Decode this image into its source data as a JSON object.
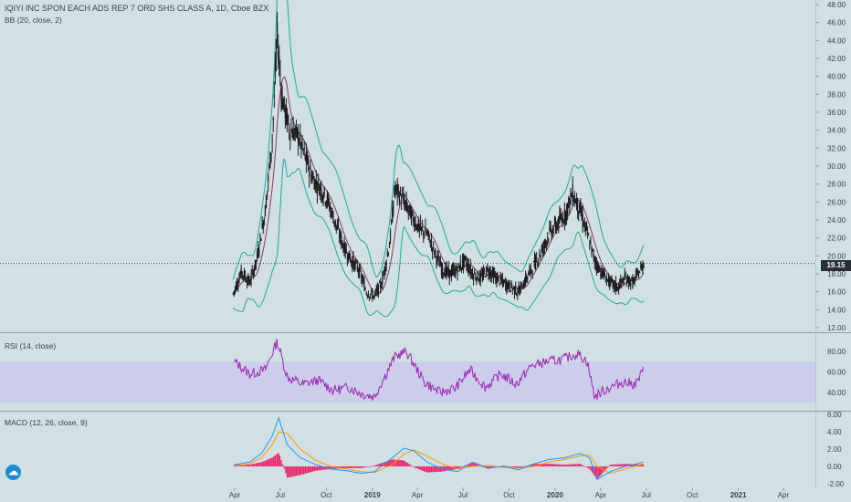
{
  "header": {
    "symbol_title": "IQIYI INC SPON EACH ADS REP 7 ORD SHS CLASS A, 1D, Cboe BZX",
    "bb_label": "BB (20, close, 2)",
    "rsi_label": "RSI (14, close)",
    "macd_label": "MACD (12, 26, close, 9)"
  },
  "last_price": "19.15",
  "colors": {
    "background": "#d1e0e3",
    "candle": "#1a1a1a",
    "bb_band": "#26a69a",
    "bb_basis": "#8b3a5c",
    "rsi_line": "#9c27b0",
    "rsi_band": "#c9c7ee",
    "macd_line": "#2196f3",
    "signal_line": "#ff9800",
    "histogram": "#e91e63",
    "axis_text": "#3a3f4a",
    "logo_icon": "tradingview-logo-icon"
  },
  "chart_data": [
    {
      "type": "line",
      "name": "price",
      "title": "IQIYI INC SPON EACH ADS REP 7 ORD SHS CLASS A, 1D, Cboe BZX",
      "x_ticks": [
        "Apr",
        "Jul",
        "Oct",
        "2019",
        "Apr",
        "Jul",
        "Oct",
        "2020",
        "Apr",
        "Jul",
        "Oct",
        "2021",
        "Apr"
      ],
      "x_range": [
        "2018-03-01",
        "2021-06-15"
      ],
      "y_ticks": [
        "12.00",
        "14.00",
        "16.00",
        "18.00",
        "20.00",
        "22.00",
        "24.00",
        "26.00",
        "28.00",
        "30.00",
        "32.00",
        "34.00",
        "36.00",
        "38.00",
        "40.00",
        "42.00",
        "44.00",
        "46.00",
        "48.00"
      ],
      "ylim": [
        12,
        48
      ],
      "last_value": 19.15,
      "x": [
        "2018-03-29",
        "2018-04-15",
        "2018-05-01",
        "2018-05-15",
        "2018-06-01",
        "2018-06-15",
        "2018-06-25",
        "2018-07-05",
        "2018-07-20",
        "2018-08-05",
        "2018-08-20",
        "2018-09-05",
        "2018-09-20",
        "2018-10-05",
        "2018-10-20",
        "2018-11-05",
        "2018-11-20",
        "2018-12-05",
        "2018-12-20",
        "2019-01-05",
        "2019-01-20",
        "2019-02-05",
        "2019-02-15",
        "2019-03-01",
        "2019-03-20",
        "2019-04-05",
        "2019-04-20",
        "2019-05-05",
        "2019-05-20",
        "2019-06-05",
        "2019-06-20",
        "2019-07-05",
        "2019-07-20",
        "2019-08-05",
        "2019-08-20",
        "2019-09-05",
        "2019-09-20",
        "2019-10-05",
        "2019-10-20",
        "2019-11-05",
        "2019-11-20",
        "2019-12-05",
        "2019-12-20",
        "2020-01-05",
        "2020-01-20",
        "2020-02-05",
        "2020-02-20",
        "2020-03-05",
        "2020-03-20",
        "2020-04-05",
        "2020-04-20",
        "2020-05-05",
        "2020-05-20",
        "2020-06-05",
        "2020-06-20",
        "2020-06-26"
      ],
      "close": [
        15.8,
        18.2,
        17.0,
        19.5,
        25.0,
        33.0,
        44.5,
        37.5,
        34.0,
        33.5,
        31.0,
        28.5,
        27.5,
        26.0,
        23.5,
        21.0,
        19.5,
        18.5,
        16.0,
        15.5,
        17.0,
        21.5,
        27.5,
        26.5,
        24.5,
        23.0,
        22.5,
        20.5,
        18.5,
        18.0,
        18.5,
        19.5,
        18.0,
        17.5,
        18.5,
        17.5,
        17.0,
        16.5,
        16.0,
        17.5,
        19.0,
        20.5,
        22.5,
        23.5,
        24.5,
        27.0,
        25.0,
        22.5,
        19.5,
        18.0,
        17.0,
        16.5,
        17.5,
        17.0,
        18.5,
        19.15
      ]
    },
    {
      "type": "line",
      "name": "RSI (14, close)",
      "y_ticks": [
        "40.00",
        "60.00",
        "80.00"
      ],
      "ylim": [
        22,
        95
      ],
      "band": [
        30,
        70
      ],
      "x": [
        "2018-04-01",
        "2018-05-01",
        "2018-06-01",
        "2018-06-25",
        "2018-07-15",
        "2018-08-15",
        "2018-09-15",
        "2018-10-15",
        "2018-11-15",
        "2018-12-15",
        "2019-01-05",
        "2019-02-15",
        "2019-03-10",
        "2019-04-15",
        "2019-05-15",
        "2019-06-15",
        "2019-07-15",
        "2019-08-15",
        "2019-09-15",
        "2019-10-15",
        "2019-11-15",
        "2019-12-15",
        "2020-01-15",
        "2020-02-15",
        "2020-03-05",
        "2020-03-20",
        "2020-04-15",
        "2020-05-15",
        "2020-06-10",
        "2020-06-26"
      ],
      "values": [
        70,
        58,
        62,
        90,
        55,
        48,
        52,
        42,
        45,
        38,
        36,
        75,
        80,
        50,
        40,
        44,
        62,
        45,
        58,
        48,
        66,
        70,
        72,
        78,
        70,
        36,
        44,
        50,
        48,
        62
      ]
    },
    {
      "type": "line",
      "name": "MACD (12, 26, close, 9)",
      "y_ticks": [
        "-2.00",
        "0.00",
        "2.00",
        "4.00",
        "6.00"
      ],
      "ylim": [
        -2.6,
        6.3
      ],
      "x": [
        "2018-04-01",
        "2018-05-01",
        "2018-05-25",
        "2018-06-15",
        "2018-06-28",
        "2018-07-15",
        "2018-08-10",
        "2018-09-10",
        "2018-10-10",
        "2018-11-10",
        "2018-12-10",
        "2019-01-05",
        "2019-02-10",
        "2019-03-05",
        "2019-03-25",
        "2019-04-20",
        "2019-05-20",
        "2019-06-20",
        "2019-07-20",
        "2019-08-20",
        "2019-09-20",
        "2019-10-20",
        "2019-11-20",
        "2019-12-20",
        "2020-01-20",
        "2020-02-20",
        "2020-03-10",
        "2020-03-25",
        "2020-04-20",
        "2020-05-20",
        "2020-06-26"
      ],
      "macd": [
        0.2,
        0.5,
        1.5,
        3.5,
        5.6,
        2.5,
        1.0,
        0.2,
        -0.3,
        -0.5,
        -0.8,
        -0.6,
        1.0,
        2.1,
        1.8,
        0.5,
        -0.3,
        -0.6,
        0.5,
        -0.2,
        0.0,
        -0.4,
        0.3,
        0.8,
        1.0,
        1.5,
        1.0,
        -1.5,
        -0.6,
        0.0,
        0.5
      ],
      "signal": [
        0.0,
        0.3,
        1.0,
        2.5,
        4.0,
        3.8,
        2.0,
        0.7,
        0.0,
        -0.3,
        -0.6,
        -0.7,
        0.2,
        1.4,
        1.9,
        1.2,
        0.3,
        -0.3,
        0.0,
        0.1,
        -0.1,
        -0.2,
        0.0,
        0.5,
        0.8,
        1.2,
        1.3,
        0.0,
        -0.8,
        -0.3,
        0.3
      ],
      "histogram": [
        0.2,
        0.2,
        0.5,
        1.0,
        1.6,
        -1.3,
        -1.0,
        -0.5,
        -0.3,
        -0.2,
        -0.2,
        0.1,
        0.8,
        0.7,
        -0.1,
        -0.7,
        -0.6,
        -0.3,
        0.5,
        -0.3,
        0.1,
        -0.2,
        0.3,
        0.3,
        0.2,
        0.3,
        -0.3,
        -1.5,
        0.2,
        0.3,
        0.2
      ]
    }
  ]
}
